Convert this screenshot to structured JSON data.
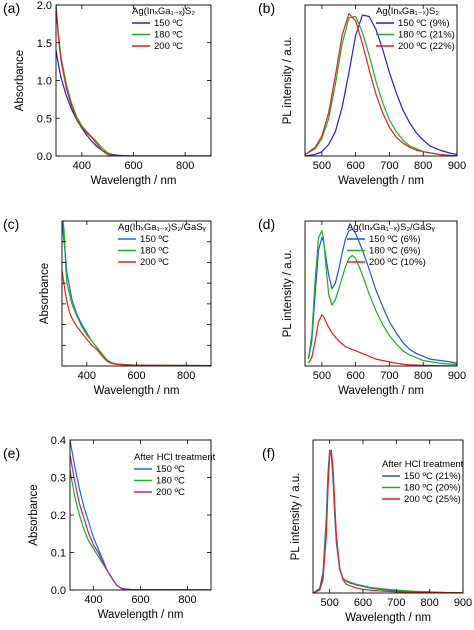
{
  "chart_data": [
    {
      "id": "a",
      "type": "line",
      "panel_label": "(a)",
      "xlabel": "Wavelength / nm",
      "ylabel": "Absorbance",
      "xlim": [
        300,
        900
      ],
      "ylim": [
        0,
        2.0
      ],
      "xticks": [
        400,
        600,
        800
      ],
      "yticks": [
        0.0,
        0.5,
        1.0,
        1.5,
        2.0
      ],
      "ytick_labels": [
        "0.0",
        "0.5",
        "1.0",
        "1.5",
        "2.0"
      ],
      "legend_title": "Ag(InₓGa₁₋ₓ)S₂",
      "legend_position": "top-right",
      "series": [
        {
          "name": "150 ºC",
          "color": "#2222cc",
          "x": [
            300,
            310,
            320,
            340,
            360,
            380,
            400,
            420,
            440,
            460,
            480,
            500,
            520,
            540,
            560,
            580,
            600,
            900
          ],
          "y": [
            1.4,
            1.2,
            1.03,
            0.8,
            0.62,
            0.48,
            0.37,
            0.27,
            0.19,
            0.12,
            0.07,
            0.04,
            0.02,
            0.01,
            0.005,
            0.002,
            0,
            0
          ]
        },
        {
          "name": "180 ºC",
          "color": "#22aa22",
          "x": [
            300,
            310,
            320,
            340,
            360,
            380,
            400,
            420,
            440,
            460,
            480,
            500,
            520,
            540,
            560,
            900
          ],
          "y": [
            2.0,
            1.6,
            1.3,
            0.95,
            0.7,
            0.52,
            0.4,
            0.32,
            0.25,
            0.18,
            0.1,
            0.04,
            0.01,
            0.003,
            0,
            0
          ]
        },
        {
          "name": "200 ºC",
          "color": "#dd2222",
          "x": [
            300,
            310,
            320,
            340,
            360,
            380,
            400,
            420,
            440,
            460,
            480,
            500,
            520,
            540,
            900
          ],
          "y": [
            1.95,
            1.55,
            1.25,
            0.9,
            0.66,
            0.49,
            0.38,
            0.3,
            0.24,
            0.15,
            0.07,
            0.02,
            0.005,
            0,
            0
          ]
        }
      ]
    },
    {
      "id": "b",
      "type": "line",
      "panel_label": "(b)",
      "xlabel": "Wavelength / nm",
      "ylabel": "PL intensity / a.u.",
      "xlim": [
        450,
        900
      ],
      "ylim": [
        0,
        1.05
      ],
      "xticks": [
        500,
        600,
        700,
        800,
        900
      ],
      "yticks": [],
      "ytick_labels": [],
      "legend_title": "Ag(InₓGa₁₋ₓ)S₂",
      "legend_position": "top-right",
      "series": [
        {
          "name": "150 ºC (9%)",
          "color": "#2222cc",
          "x": [
            450,
            480,
            500,
            520,
            540,
            560,
            580,
            600,
            620,
            640,
            660,
            680,
            700,
            720,
            740,
            760,
            780,
            800,
            820,
            850,
            880,
            900
          ],
          "y": [
            0,
            0.01,
            0.03,
            0.08,
            0.17,
            0.34,
            0.58,
            0.84,
            0.98,
            0.97,
            0.88,
            0.74,
            0.58,
            0.44,
            0.32,
            0.23,
            0.16,
            0.11,
            0.07,
            0.04,
            0.02,
            0.01
          ]
        },
        {
          "name": "180 ºC (21%)",
          "color": "#22aa22",
          "x": [
            450,
            480,
            500,
            520,
            540,
            560,
            580,
            600,
            620,
            640,
            660,
            680,
            700,
            720,
            740,
            760,
            780,
            800,
            850,
            900
          ],
          "y": [
            0.01,
            0.05,
            0.12,
            0.26,
            0.5,
            0.78,
            0.96,
            0.97,
            0.86,
            0.7,
            0.52,
            0.37,
            0.25,
            0.17,
            0.11,
            0.07,
            0.05,
            0.03,
            0.01,
            0
          ]
        },
        {
          "name": "200 ºC (22%)",
          "color": "#dd2222",
          "x": [
            450,
            480,
            500,
            520,
            540,
            560,
            580,
            600,
            620,
            640,
            660,
            680,
            700,
            720,
            740,
            760,
            780,
            800,
            850,
            900
          ],
          "y": [
            0.01,
            0.06,
            0.14,
            0.3,
            0.56,
            0.84,
            0.99,
            0.94,
            0.78,
            0.6,
            0.43,
            0.3,
            0.2,
            0.13,
            0.09,
            0.06,
            0.04,
            0.03,
            0.01,
            0
          ]
        }
      ]
    },
    {
      "id": "c",
      "type": "line",
      "panel_label": "(c)",
      "xlabel": "Wavelength / nm",
      "ylabel": "Absorbance",
      "xlim": [
        300,
        900
      ],
      "ylim": [
        0,
        0.7
      ],
      "xticks": [
        400,
        600,
        800
      ],
      "yticks": [
        0,
        0.1,
        0.2,
        0.3,
        0.4,
        0.5,
        0.6,
        0.7
      ],
      "ytick_labels": [],
      "legend_title": "Ag(InₓGa₁₋ₓ)S₂/GaSᵧ",
      "legend_position": "top-right",
      "series": [
        {
          "name": "150 ºC",
          "color": "#2266dd",
          "x": [
            300,
            310,
            320,
            340,
            360,
            380,
            400,
            420,
            440,
            460,
            480,
            500,
            520,
            540,
            560,
            600,
            900
          ],
          "y": [
            0.7,
            0.58,
            0.45,
            0.32,
            0.25,
            0.2,
            0.16,
            0.12,
            0.09,
            0.06,
            0.03,
            0.015,
            0.01,
            0.008,
            0.006,
            0.004,
            0.002
          ]
        },
        {
          "name": "180 ºC",
          "color": "#22aa22",
          "x": [
            300,
            304,
            308,
            312,
            316,
            320,
            340,
            360,
            380,
            400,
            420,
            440,
            460,
            480,
            500,
            520,
            540,
            560,
            600,
            900
          ],
          "y": [
            0.7,
            0.7,
            0.66,
            0.56,
            0.46,
            0.4,
            0.3,
            0.24,
            0.19,
            0.15,
            0.12,
            0.09,
            0.06,
            0.03,
            0.015,
            0.01,
            0.008,
            0.006,
            0.004,
            0.002
          ]
        },
        {
          "name": "200 ºC",
          "color": "#dd2222",
          "x": [
            300,
            310,
            320,
            330,
            340,
            360,
            380,
            400,
            420,
            440,
            460,
            480,
            500,
            520,
            540,
            560,
            600,
            900
          ],
          "y": [
            0.46,
            0.38,
            0.31,
            0.26,
            0.23,
            0.19,
            0.16,
            0.13,
            0.1,
            0.08,
            0.05,
            0.025,
            0.012,
            0.008,
            0.006,
            0.005,
            0.004,
            0.002
          ]
        }
      ]
    },
    {
      "id": "d",
      "type": "line",
      "panel_label": "(d)",
      "xlabel": "Wavelength / nm",
      "ylabel": "PL intensity / a.u.",
      "xlim": [
        450,
        900
      ],
      "ylim": [
        0,
        1.05
      ],
      "xticks": [
        500,
        600,
        700,
        800,
        900
      ],
      "yticks": [],
      "ytick_labels": [],
      "legend_title": "Ag(InₓGa₁₋ₓ)S₂/GaSᵧ",
      "legend_position": "top-right",
      "series": [
        {
          "name": "150 ºC (6%)",
          "color": "#2255cc",
          "x": [
            460,
            470,
            480,
            490,
            500,
            505,
            510,
            520,
            530,
            540,
            550,
            560,
            570,
            580,
            590,
            600,
            620,
            640,
            660,
            680,
            700,
            720,
            740,
            760,
            780,
            800,
            820,
            850,
            880,
            900
          ],
          "y": [
            0.05,
            0.18,
            0.52,
            0.84,
            0.93,
            0.9,
            0.82,
            0.66,
            0.56,
            0.6,
            0.7,
            0.82,
            0.92,
            0.98,
            0.99,
            0.96,
            0.84,
            0.7,
            0.55,
            0.43,
            0.32,
            0.24,
            0.17,
            0.12,
            0.09,
            0.07,
            0.05,
            0.04,
            0.03,
            0.02
          ]
        },
        {
          "name": "180 ºC (6%)",
          "color": "#22aa22",
          "x": [
            460,
            470,
            480,
            490,
            500,
            505,
            510,
            520,
            530,
            540,
            550,
            560,
            570,
            580,
            590,
            600,
            620,
            640,
            660,
            680,
            700,
            720,
            740,
            760,
            780,
            800,
            850,
            900
          ],
          "y": [
            0.05,
            0.22,
            0.62,
            0.93,
            0.98,
            0.92,
            0.78,
            0.52,
            0.44,
            0.48,
            0.56,
            0.64,
            0.72,
            0.78,
            0.8,
            0.78,
            0.66,
            0.52,
            0.4,
            0.3,
            0.22,
            0.16,
            0.11,
            0.08,
            0.06,
            0.04,
            0.02,
            0.01
          ]
        },
        {
          "name": "200 ºC (10%)",
          "color": "#dd2222",
          "x": [
            460,
            470,
            480,
            490,
            500,
            505,
            510,
            520,
            530,
            540,
            550,
            560,
            570,
            580,
            590,
            600,
            620,
            640,
            660,
            680,
            700,
            720,
            750,
            800,
            850,
            900
          ],
          "y": [
            0.02,
            0.06,
            0.18,
            0.32,
            0.37,
            0.36,
            0.33,
            0.28,
            0.24,
            0.21,
            0.18,
            0.16,
            0.14,
            0.13,
            0.12,
            0.11,
            0.09,
            0.07,
            0.05,
            0.04,
            0.03,
            0.02,
            0.01,
            0.005,
            0.002,
            0
          ]
        }
      ]
    },
    {
      "id": "e",
      "type": "line",
      "panel_label": "(e)",
      "xlabel": "Wavelength / nm",
      "ylabel": "Absorbance",
      "xlim": [
        300,
        900
      ],
      "ylim": [
        0,
        0.4
      ],
      "xticks": [
        400,
        600,
        800
      ],
      "yticks": [
        0.0,
        0.1,
        0.2,
        0.3,
        0.4
      ],
      "ytick_labels": [
        "0.0",
        "0.1",
        "0.2",
        "0.3",
        "0.4"
      ],
      "legend_title": "After HCl treatment",
      "legend_position": "top-right",
      "series": [
        {
          "name": "150 ºC",
          "color": "#2266dd",
          "x": [
            300,
            320,
            340,
            360,
            380,
            400,
            420,
            440,
            460,
            480,
            500,
            520,
            540,
            560,
            900
          ],
          "y": [
            0.4,
            0.33,
            0.27,
            0.22,
            0.18,
            0.14,
            0.11,
            0.08,
            0.05,
            0.03,
            0.012,
            0.004,
            0.002,
            0.001,
            0
          ]
        },
        {
          "name": "180 ºC",
          "color": "#22aa22",
          "x": [
            300,
            320,
            340,
            360,
            380,
            400,
            420,
            440,
            460,
            480,
            500,
            520,
            540,
            560,
            900
          ],
          "y": [
            0.32,
            0.25,
            0.2,
            0.16,
            0.13,
            0.11,
            0.09,
            0.07,
            0.05,
            0.03,
            0.012,
            0.004,
            0.002,
            0.001,
            0
          ]
        },
        {
          "name": "200 ºC",
          "color": "#aa2299",
          "x": [
            300,
            320,
            340,
            360,
            380,
            400,
            420,
            440,
            460,
            480,
            500,
            520,
            540,
            560,
            900
          ],
          "y": [
            0.36,
            0.29,
            0.23,
            0.19,
            0.15,
            0.12,
            0.1,
            0.075,
            0.05,
            0.03,
            0.012,
            0.004,
            0.002,
            0.001,
            0
          ]
        }
      ]
    },
    {
      "id": "f",
      "type": "line",
      "panel_label": "(f)",
      "xlabel": "Wavelength / nm",
      "ylabel": "PL intensity / a.u.",
      "xlim": [
        450,
        900
      ],
      "ylim": [
        0,
        1.05
      ],
      "xticks": [
        500,
        600,
        700,
        800,
        900
      ],
      "yticks": [],
      "ytick_labels": [],
      "legend_title": "After HCl treatment",
      "legend_position": "top-right",
      "series": [
        {
          "name": "150 ºC (21%)",
          "color": "#2255cc",
          "x": [
            450,
            470,
            480,
            490,
            495,
            500,
            505,
            510,
            515,
            520,
            530,
            540,
            550,
            560,
            580,
            600,
            620,
            650,
            700,
            750,
            800,
            850,
            900
          ],
          "y": [
            0,
            0.03,
            0.14,
            0.52,
            0.82,
            0.98,
            0.95,
            0.78,
            0.54,
            0.35,
            0.16,
            0.1,
            0.08,
            0.07,
            0.055,
            0.045,
            0.035,
            0.025,
            0.015,
            0.01,
            0.006,
            0.003,
            0.001
          ]
        },
        {
          "name": "180 ºC (20%)",
          "color": "#22aa22",
          "x": [
            450,
            470,
            480,
            490,
            495,
            500,
            505,
            510,
            515,
            520,
            530,
            540,
            550,
            560,
            580,
            600,
            620,
            650,
            700,
            750,
            800,
            850,
            900
          ],
          "y": [
            0,
            0.02,
            0.1,
            0.46,
            0.78,
            0.97,
            0.97,
            0.82,
            0.58,
            0.38,
            0.17,
            0.1,
            0.085,
            0.075,
            0.06,
            0.05,
            0.04,
            0.03,
            0.02,
            0.012,
            0.008,
            0.004,
            0.002
          ]
        },
        {
          "name": "200 ºC (25%)",
          "color": "#dd2222",
          "x": [
            450,
            470,
            480,
            490,
            495,
            500,
            505,
            510,
            515,
            520,
            530,
            540,
            550,
            560,
            580,
            600,
            620,
            650,
            700,
            750,
            800,
            850,
            900
          ],
          "y": [
            0,
            0.02,
            0.09,
            0.4,
            0.72,
            0.94,
            0.98,
            0.86,
            0.62,
            0.4,
            0.17,
            0.09,
            0.06,
            0.05,
            0.035,
            0.025,
            0.02,
            0.014,
            0.008,
            0.005,
            0.003,
            0.002,
            0.001
          ]
        }
      ]
    }
  ]
}
